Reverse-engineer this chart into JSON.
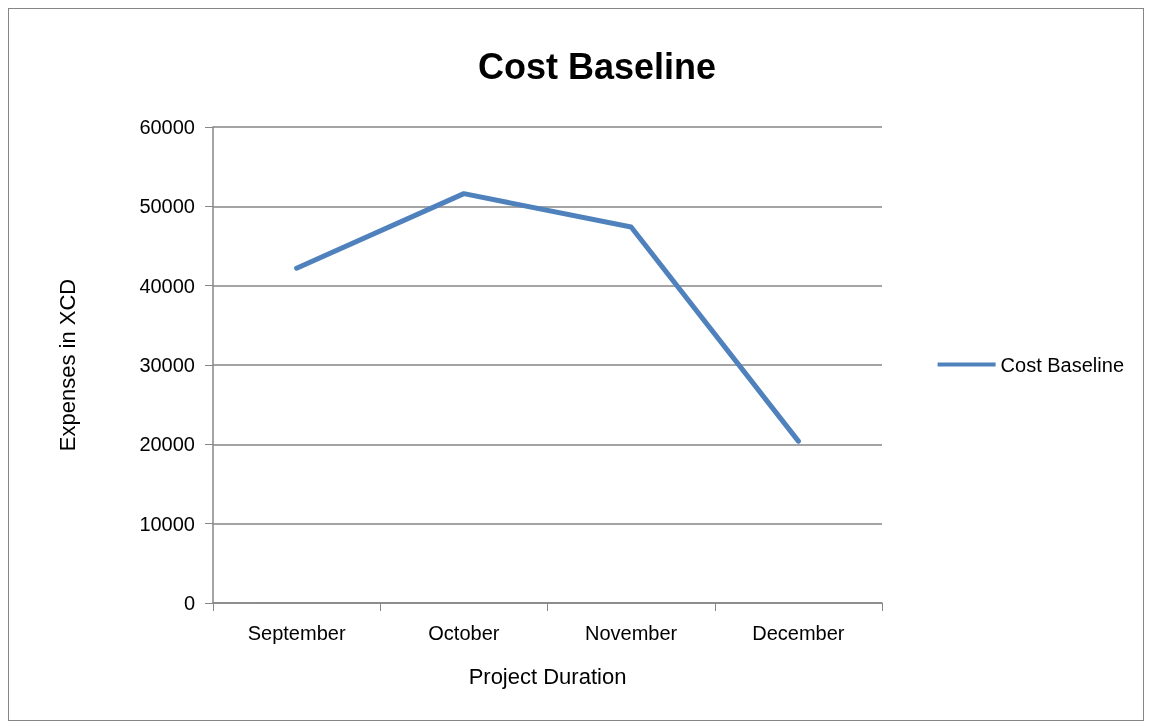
{
  "chart_data": {
    "type": "line",
    "title": "Cost Baseline",
    "xlabel": "Project Duration",
    "ylabel": "Expenses in XCD",
    "categories": [
      "September",
      "October",
      "November",
      "December"
    ],
    "series": [
      {
        "name": "Cost Baseline",
        "color": "#4f81bd",
        "values": [
          42200,
          51600,
          47400,
          20400
        ]
      }
    ],
    "ylim": [
      0,
      60000
    ],
    "yticks": [
      0,
      10000,
      20000,
      30000,
      40000,
      50000,
      60000
    ],
    "grid": "y",
    "legend": "right",
    "marker": "none",
    "line_style": "solid"
  }
}
